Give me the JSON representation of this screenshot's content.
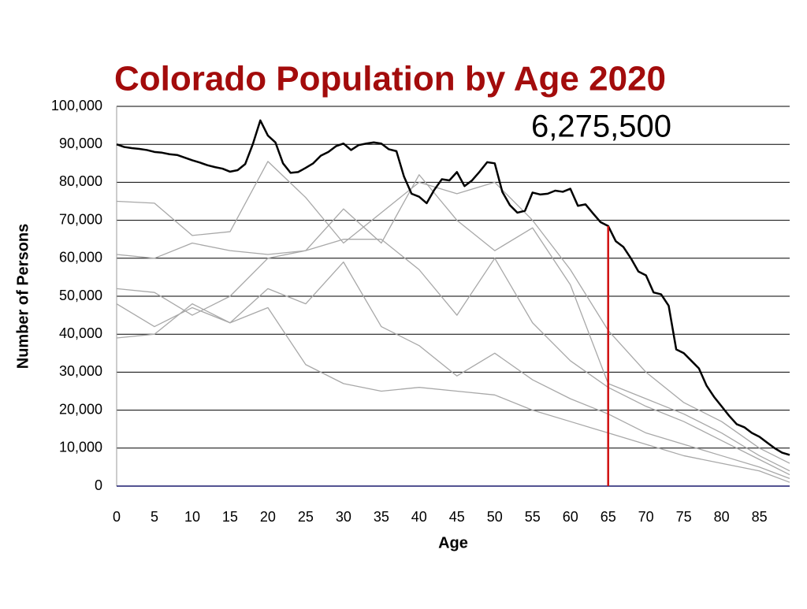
{
  "chart_data": {
    "type": "line",
    "title": "Colorado Population by Age 2020",
    "annotation": "6,275,500",
    "x_label": "Age",
    "y_label": "Number of Persons",
    "title_color": "#a30c0c",
    "xlim": [
      0,
      89
    ],
    "xticks": [
      0,
      5,
      10,
      15,
      20,
      25,
      30,
      35,
      40,
      45,
      50,
      55,
      60,
      65,
      70,
      75,
      80,
      85
    ],
    "ylim": [
      0,
      100000
    ],
    "yticks": [
      0,
      {
        "value": 10000,
        "label": "10,000"
      },
      {
        "value": 20000,
        "label": "20,000"
      },
      {
        "value": 30000,
        "label": "30,000"
      },
      {
        "value": 40000,
        "label": "40,000"
      },
      {
        "value": 50000,
        "label": "50,000"
      },
      {
        "value": 60000,
        "label": "60,000"
      },
      {
        "value": 70000,
        "label": "70,000"
      },
      {
        "value": 80000,
        "label": "80,000"
      },
      {
        "value": 90000,
        "label": "90,000"
      },
      {
        "value": 100000,
        "label": "100,000"
      }
    ],
    "grid": true,
    "vline_x": 65,
    "vline_color": "#d01010",
    "series": [
      {
        "color": "#a8a8a8",
        "x": [
          0,
          5,
          10,
          15,
          20,
          25,
          30,
          35,
          40,
          45,
          50,
          55,
          60,
          65,
          70,
          75,
          80,
          85,
          89
        ],
        "values": [
          75000,
          74500,
          66000,
          67000,
          85500,
          76000,
          64000,
          72000,
          80000,
          77000,
          80000,
          70000,
          57000,
          41000,
          30000,
          22000,
          17000,
          10000,
          6000
        ]
      },
      {
        "color": "#a8a8a8",
        "x": [
          0,
          5,
          10,
          15,
          20,
          25,
          30,
          35,
          40,
          45,
          50,
          55,
          60,
          65,
          70,
          75,
          80,
          85,
          89
        ],
        "values": [
          61000,
          60000,
          64000,
          62000,
          61000,
          62000,
          73000,
          64000,
          82000,
          70000,
          62000,
          68000,
          53000,
          27000,
          23000,
          19000,
          14000,
          8000,
          4000
        ]
      },
      {
        "color": "#a8a8a8",
        "x": [
          0,
          5,
          10,
          15,
          20,
          25,
          30,
          35,
          40,
          45,
          50,
          55,
          60,
          65,
          70,
          75,
          80,
          85,
          89
        ],
        "values": [
          52000,
          51000,
          45000,
          50000,
          60000,
          62000,
          65000,
          65000,
          57000,
          45000,
          60000,
          43000,
          33000,
          26000,
          21000,
          17000,
          12000,
          7000,
          3000
        ]
      },
      {
        "color": "#a8a8a8",
        "x": [
          0,
          5,
          10,
          15,
          20,
          25,
          30,
          35,
          40,
          45,
          50,
          55,
          60,
          65,
          70,
          75,
          80,
          85,
          89
        ],
        "values": [
          48000,
          42000,
          47000,
          43000,
          52000,
          48000,
          59000,
          42000,
          37000,
          29000,
          35000,
          28000,
          23000,
          19000,
          14000,
          11000,
          8000,
          5000,
          2000
        ]
      },
      {
        "color": "#a8a8a8",
        "x": [
          0,
          5,
          10,
          15,
          20,
          25,
          30,
          35,
          40,
          45,
          50,
          55,
          60,
          65,
          70,
          75,
          80,
          85,
          89
        ],
        "values": [
          39000,
          40000,
          48000,
          43000,
          47000,
          32000,
          27000,
          25000,
          26000,
          25000,
          24000,
          20000,
          17000,
          14000,
          11000,
          8000,
          6000,
          4000,
          1000
        ]
      },
      {
        "color": "#000000",
        "width": 2.5,
        "x": [
          0,
          1,
          2,
          3,
          4,
          5,
          6,
          7,
          8,
          9,
          10,
          11,
          12,
          13,
          14,
          15,
          16,
          17,
          18,
          19,
          20,
          21,
          22,
          23,
          24,
          25,
          26,
          27,
          28,
          29,
          30,
          31,
          32,
          33,
          34,
          35,
          36,
          37,
          38,
          39,
          40,
          41,
          42,
          43,
          44,
          45,
          46,
          47,
          48,
          49,
          50,
          51,
          52,
          53,
          54,
          55,
          56,
          57,
          58,
          59,
          60,
          61,
          62,
          63,
          64,
          65,
          66,
          67,
          68,
          69,
          70,
          71,
          72,
          73,
          74,
          75,
          76,
          77,
          78,
          79,
          80,
          81,
          82,
          83,
          84,
          85,
          86,
          87,
          88,
          89
        ],
        "values": [
          90000,
          89300,
          89000,
          88800,
          88500,
          88000,
          87800,
          87400,
          87200,
          86500,
          85800,
          85200,
          84500,
          84000,
          83600,
          82800,
          83200,
          84800,
          90000,
          96300,
          92300,
          90500,
          85000,
          82500,
          82700,
          83800,
          85000,
          87000,
          88000,
          89500,
          90200,
          88500,
          89800,
          90200,
          90500,
          90200,
          88700,
          88200,
          81500,
          77000,
          76200,
          74500,
          78000,
          80800,
          80500,
          82700,
          79000,
          80500,
          82800,
          85300,
          85000,
          77500,
          74000,
          72000,
          72500,
          77300,
          76800,
          77000,
          77800,
          77500,
          78300,
          73800,
          74200,
          71800,
          69500,
          68500,
          64500,
          63000,
          60000,
          56500,
          55500,
          51000,
          50500,
          47500,
          36000,
          35000,
          33000,
          31000,
          26500,
          23500,
          21000,
          18500,
          16300,
          15500,
          14000,
          13000,
          11500,
          10000,
          8800,
          8200
        ]
      }
    ]
  }
}
